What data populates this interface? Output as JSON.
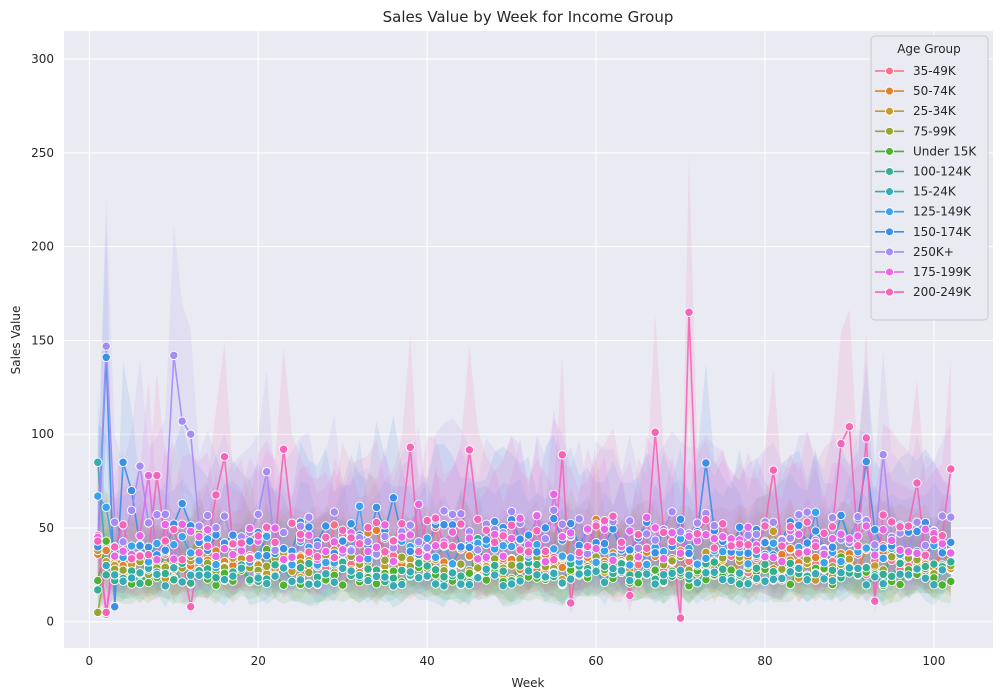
{
  "chart_data": {
    "type": "line",
    "title": "Sales Value by Week for Income Group",
    "xlabel": "Week",
    "ylabel": "Sales Value",
    "xlim": [
      -3,
      107
    ],
    "ylim": [
      -14,
      315
    ],
    "xticks": [
      0,
      20,
      40,
      60,
      80,
      100
    ],
    "yticks": [
      0,
      50,
      100,
      150,
      200,
      250,
      300
    ],
    "grid": true,
    "background": "#eaeaf2",
    "legend": {
      "title": "Age Group",
      "placement": "top-right",
      "entries": [
        "35-49K",
        "50-74K",
        "25-34K",
        "75-99K",
        "Under 15K",
        "100-124K",
        "15-24K",
        "125-149K",
        "150-174K",
        "250K+",
        "175-199K",
        "200-249K"
      ]
    },
    "series": [
      {
        "name": "35-49K",
        "color": "#f77189",
        "base": 32,
        "amp": 7,
        "seed": 11,
        "points": [
          [
            1,
            46
          ],
          [
            2,
            42
          ],
          [
            3,
            40
          ]
        ]
      },
      {
        "name": "50-74K",
        "color": "#e1812c",
        "base": 33,
        "amp": 6,
        "seed": 23,
        "points": [
          [
            1,
            36
          ],
          [
            2,
            38
          ],
          [
            3,
            34
          ]
        ]
      },
      {
        "name": "25-34K",
        "color": "#c39a2c",
        "base": 28,
        "amp": 6,
        "seed": 37,
        "points": [
          [
            1,
            38
          ],
          [
            2,
            32
          ],
          [
            3,
            30
          ]
        ]
      },
      {
        "name": "75-99K",
        "color": "#97a431",
        "base": 30,
        "amp": 5,
        "seed": 41,
        "points": [
          [
            1,
            5
          ],
          [
            2,
            30
          ],
          [
            3,
            28
          ]
        ]
      },
      {
        "name": "Under 15K",
        "color": "#50b131",
        "base": 24,
        "amp": 5,
        "seed": 53,
        "points": [
          [
            1,
            22
          ],
          [
            2,
            43
          ],
          [
            3,
            25
          ]
        ]
      },
      {
        "name": "100-124K",
        "color": "#34ae91",
        "base": 26,
        "amp": 6,
        "seed": 61,
        "points": [
          [
            1,
            17
          ],
          [
            2,
            25
          ],
          [
            3,
            22
          ]
        ]
      },
      {
        "name": "15-24K",
        "color": "#37abb5",
        "base": 24,
        "amp": 5,
        "seed": 71,
        "points": [
          [
            1,
            85
          ],
          [
            2,
            30
          ],
          [
            3,
            25
          ]
        ]
      },
      {
        "name": "125-149K",
        "color": "#3ba3ec",
        "base": 38,
        "amp": 8,
        "seed": 83,
        "points": [
          [
            1,
            67
          ],
          [
            2,
            61
          ],
          [
            3,
            35
          ]
        ]
      },
      {
        "name": "150-174K",
        "color": "#3a8fe6",
        "base": 45,
        "amp": 10,
        "seed": 97,
        "points": [
          [
            1,
            40
          ],
          [
            2,
            141
          ],
          [
            3,
            8
          ],
          [
            4,
            85
          ],
          [
            5,
            70
          ],
          [
            11,
            63
          ]
        ]
      },
      {
        "name": "250K+",
        "color": "#a48cf4",
        "base": 48,
        "amp": 12,
        "seed": 101,
        "points": [
          [
            1,
            44
          ],
          [
            2,
            147
          ],
          [
            3,
            53
          ],
          [
            6,
            83
          ],
          [
            10,
            142
          ],
          [
            11,
            107
          ],
          [
            12,
            100
          ],
          [
            21,
            80
          ]
        ]
      },
      {
        "name": "175-199K",
        "color": "#e866e6",
        "base": 42,
        "amp": 10,
        "seed": 113,
        "points": [
          [
            1,
            45
          ],
          [
            2,
            4
          ],
          [
            3,
            35
          ],
          [
            7,
            78
          ]
        ]
      },
      {
        "name": "200-249K",
        "color": "#f564b6",
        "base": 45,
        "amp": 12,
        "seed": 127,
        "points": [
          [
            1,
            43
          ],
          [
            2,
            5
          ],
          [
            8,
            78
          ],
          [
            12,
            8
          ],
          [
            16,
            88
          ],
          [
            23,
            92
          ],
          [
            38,
            93
          ],
          [
            56,
            89
          ],
          [
            57,
            10
          ],
          [
            64,
            14
          ],
          [
            67,
            101
          ],
          [
            70,
            2
          ],
          [
            71,
            165
          ],
          [
            89,
            95
          ],
          [
            90,
            104
          ],
          [
            92,
            98
          ],
          [
            93,
            11
          ],
          [
            98,
            74
          ]
        ]
      }
    ],
    "x_range": [
      1,
      102
    ]
  }
}
